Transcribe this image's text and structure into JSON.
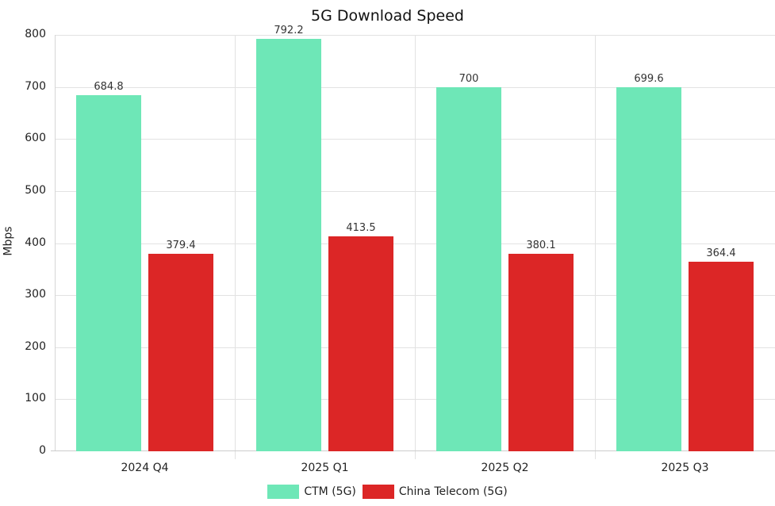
{
  "chart_data": {
    "type": "bar",
    "title": "5G Download Speed",
    "xlabel": "",
    "ylabel": "Mbps",
    "ylim": [
      0,
      800
    ],
    "yticks": [
      0,
      100,
      200,
      300,
      400,
      500,
      600,
      700,
      800
    ],
    "grid": true,
    "legend_position": "bottom",
    "categories": [
      "2024 Q4",
      "2025 Q1",
      "2025 Q2",
      "2025 Q3"
    ],
    "series": [
      {
        "name": "CTM (5G)",
        "color": "#6ee7b7",
        "values": [
          684.8,
          792.2,
          700,
          699.6
        ]
      },
      {
        "name": "China Telecom (5G)",
        "color": "#dc2626",
        "values": [
          379.4,
          413.5,
          380.1,
          364.4
        ]
      }
    ]
  }
}
